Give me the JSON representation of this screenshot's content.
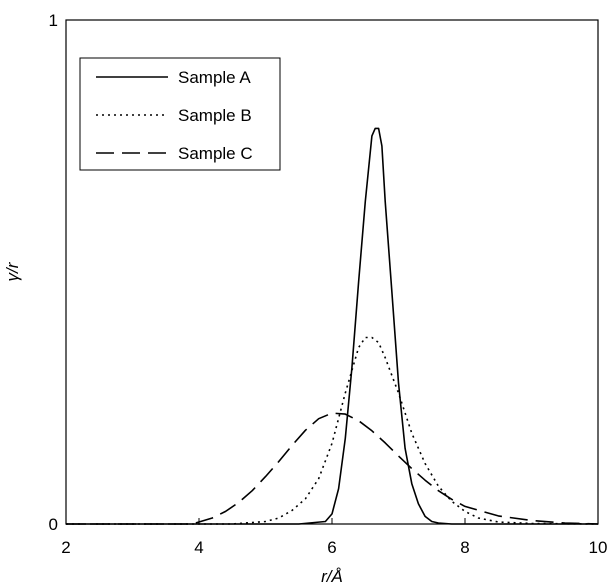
{
  "chart_data": {
    "type": "line",
    "xlabel": "r/Å",
    "ylabel": "γ/r",
    "xlim": [
      2,
      10
    ],
    "ylim": [
      0,
      1
    ],
    "x_ticks": [
      "2",
      "4",
      "6",
      "8",
      "10"
    ],
    "y_ticks": [
      "0",
      "1"
    ],
    "grid": false,
    "legend_position": "top-left",
    "series": [
      {
        "name": "Sample A",
        "style": "solid",
        "x": [
          2,
          5.5,
          5.9,
          6.0,
          6.1,
          6.2,
          6.3,
          6.4,
          6.5,
          6.6,
          6.65,
          6.7,
          6.75,
          6.8,
          6.9,
          7.0,
          7.1,
          7.2,
          7.3,
          7.4,
          7.5,
          7.6,
          7.7,
          7.8,
          8.0,
          10
        ],
        "y": [
          0,
          0,
          0.005,
          0.02,
          0.07,
          0.17,
          0.31,
          0.48,
          0.64,
          0.77,
          0.785,
          0.785,
          0.75,
          0.64,
          0.46,
          0.28,
          0.15,
          0.08,
          0.04,
          0.015,
          0.005,
          0.002,
          0.001,
          0,
          0,
          0
        ]
      },
      {
        "name": "Sample B",
        "style": "dotted",
        "x": [
          2,
          4.5,
          5.0,
          5.2,
          5.4,
          5.6,
          5.8,
          6.0,
          6.2,
          6.4,
          6.5,
          6.6,
          6.7,
          6.8,
          7.0,
          7.2,
          7.4,
          7.6,
          7.8,
          8.0,
          8.2,
          8.5,
          9.0,
          10
        ],
        "y": [
          0,
          0,
          0.005,
          0.012,
          0.027,
          0.05,
          0.09,
          0.16,
          0.26,
          0.35,
          0.37,
          0.37,
          0.36,
          0.33,
          0.26,
          0.18,
          0.12,
          0.075,
          0.045,
          0.025,
          0.012,
          0.004,
          0.001,
          0
        ]
      },
      {
        "name": "Sample C",
        "style": "dashed",
        "x": [
          2,
          3.9,
          4.0,
          4.2,
          4.4,
          4.6,
          4.8,
          5.0,
          5.2,
          5.4,
          5.6,
          5.8,
          6.0,
          6.2,
          6.4,
          6.6,
          6.8,
          7.0,
          7.2,
          7.4,
          7.6,
          7.8,
          8.0,
          8.5,
          9.0,
          9.5,
          10
        ],
        "y": [
          0,
          0,
          0.004,
          0.012,
          0.025,
          0.043,
          0.066,
          0.094,
          0.124,
          0.156,
          0.186,
          0.209,
          0.22,
          0.218,
          0.205,
          0.185,
          0.161,
          0.135,
          0.11,
          0.087,
          0.066,
          0.049,
          0.035,
          0.016,
          0.007,
          0.002,
          0
        ]
      }
    ]
  }
}
